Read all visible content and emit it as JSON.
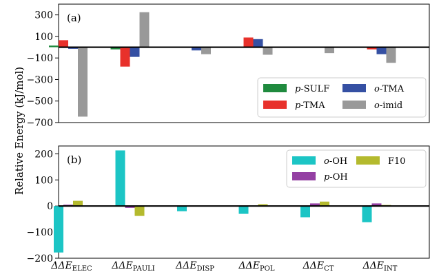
{
  "figure": {
    "ylabel": "Relative Energy (kJ/mol)",
    "categories": [
      "ΔΔE_ELEC",
      "ΔΔE_PAULI",
      "ΔΔE_DISP",
      "ΔΔE_POL",
      "ΔΔE_CT",
      "ΔΔE_INT"
    ],
    "category_labels": [
      {
        "main": "ΔΔE",
        "sub": "ELEC"
      },
      {
        "main": "ΔΔE",
        "sub": "PAULI"
      },
      {
        "main": "ΔΔE",
        "sub": "DISP"
      },
      {
        "main": "ΔΔE",
        "sub": "POL"
      },
      {
        "main": "ΔΔE",
        "sub": "CT"
      },
      {
        "main": "ΔΔE",
        "sub": "INT"
      }
    ]
  },
  "chart_data": [
    {
      "type": "bar",
      "panel_label": "(a)",
      "ylim": [
        -700,
        400
      ],
      "yticks": [
        300,
        100,
        -100,
        -300,
        -500,
        -700
      ],
      "categories": [
        "ΔΔE_ELEC",
        "ΔΔE_PAULI",
        "ΔΔE_DISP",
        "ΔΔE_POL",
        "ΔΔE_CT",
        "ΔΔE_INT"
      ],
      "series": [
        {
          "name": "p-SULF",
          "prefix": "p",
          "suffix": "-SULF",
          "color": "#1f8a3e",
          "values": [
            15,
            -20,
            0,
            0,
            0,
            0
          ]
        },
        {
          "name": "p-TMA",
          "prefix": "p",
          "suffix": "-TMA",
          "color": "#e8312b",
          "values": [
            65,
            -180,
            0,
            90,
            5,
            -20
          ]
        },
        {
          "name": "o-TMA",
          "prefix": "o",
          "suffix": "-TMA",
          "color": "#3550a3",
          "values": [
            -15,
            -90,
            -30,
            75,
            0,
            -65
          ]
        },
        {
          "name": "o-imid",
          "prefix": "o",
          "suffix": "-imid",
          "color": "#999999",
          "values": [
            -645,
            325,
            -65,
            -70,
            -55,
            -145
          ]
        }
      ],
      "legend": {
        "position": "lower-right",
        "columns": 2
      }
    },
    {
      "type": "bar",
      "panel_label": "(b)",
      "ylim": [
        -200,
        230
      ],
      "yticks": [
        200,
        100,
        0,
        -100,
        -200
      ],
      "categories": [
        "ΔΔE_ELEC",
        "ΔΔE_PAULI",
        "ΔΔE_DISP",
        "ΔΔE_POL",
        "ΔΔE_CT",
        "ΔΔE_INT"
      ],
      "series": [
        {
          "name": "o-OH",
          "prefix": "o",
          "suffix": "-OH",
          "color": "#1cc5c5",
          "values": [
            -178,
            213,
            -20,
            -30,
            -43,
            -62
          ]
        },
        {
          "name": "p-OH",
          "prefix": "p",
          "suffix": "-OH",
          "color": "#9440a3",
          "values": [
            5,
            -7,
            0,
            0,
            10,
            10
          ]
        },
        {
          "name": "F10",
          "prefix": "",
          "suffix": "F10",
          "color": "#b4ba2e",
          "values": [
            20,
            -38,
            0,
            7,
            17,
            4
          ]
        }
      ],
      "legend": {
        "position": "upper-right",
        "columns": 2
      }
    }
  ]
}
